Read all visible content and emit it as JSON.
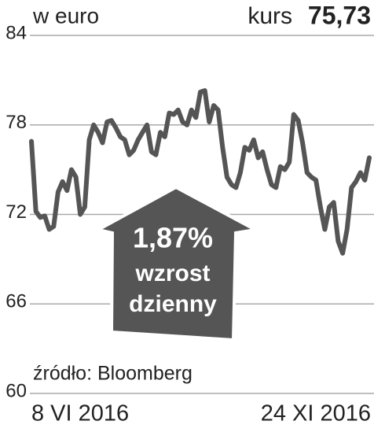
{
  "chart_data": {
    "type": "line",
    "unit_label": "w euro",
    "price_label": "kurs",
    "price_value": "75,73",
    "annotation": {
      "change": "1,87%",
      "line1": "wzrost",
      "line2": "dzienny"
    },
    "source": "źródło: Bloomberg",
    "x_labels": [
      "8 VI 2016",
      "24 XI 2016"
    ],
    "color": "#555555",
    "values": [
      76.9,
      72.2,
      71.8,
      71.9,
      71.0,
      71.2,
      73.5,
      74.2,
      73.6,
      75.0,
      74.5,
      72.0,
      72.5,
      77.0,
      78.0,
      77.5,
      76.8,
      78.2,
      78.3,
      77.8,
      77.2,
      77.0,
      76.0,
      76.3,
      77.0,
      77.5,
      78.0,
      76.2,
      76.0,
      77.5,
      77.2,
      78.8,
      78.7,
      79.0,
      78.2,
      78.0,
      79.0,
      78.5,
      80.2,
      80.3,
      78.2,
      79.3,
      79.0,
      76.5,
      74.5,
      74.0,
      73.8,
      74.8,
      76.5,
      76.3,
      77.0,
      75.8,
      76.2,
      75.0,
      74.0,
      73.8,
      75.2,
      75.0,
      75.5,
      78.7,
      78.3,
      76.8,
      74.8,
      74.5,
      74.3,
      72.5,
      71.0,
      72.5,
      72.8,
      70.2,
      69.4,
      71.0,
      73.8,
      74.2,
      74.8,
      74.3,
      75.8
    ],
    "ylim": [
      60,
      84
    ],
    "yticks": [
      60,
      66,
      72,
      78,
      84
    ],
    "grid": true
  }
}
